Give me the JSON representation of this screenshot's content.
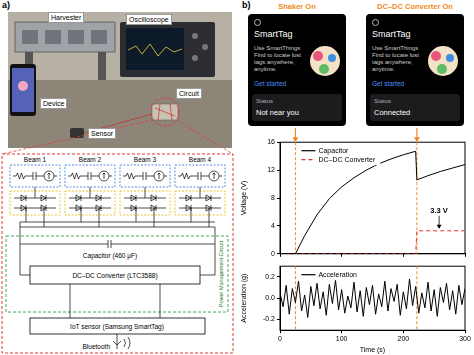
{
  "panel_labels": [
    "a)",
    "b)"
  ],
  "panel_a": {
    "photo_labels": [
      "Oscilloscope",
      "Harvester",
      "Circuit",
      "Sensor",
      "Device"
    ],
    "circuit": {
      "beams": [
        "Beam 1",
        "Beam 2",
        "Beam 3",
        "Beam 4"
      ],
      "power_management": "Power Management Circuit",
      "capacitor": "Capacitor (460 μF)",
      "converter": "DC–DC Converter (LTC3588)",
      "sensor": "IoT sensor (Samsung SmartTag)",
      "wireless": "Bluetooth"
    }
  },
  "panel_b": {
    "events": [
      {
        "label": "Shaker On",
        "x": 25
      },
      {
        "label": "DC–DC Converter On",
        "x": 222
      }
    ],
    "screenshots": [
      {
        "app": "SmartTag",
        "text": "Use SmartThings Find to locate lost tags anywhere, anytime.",
        "button": "Get started",
        "status_label": "Status",
        "status": "Not near you"
      },
      {
        "app": "SmartTag",
        "text": "Use SmartThings Find to locate lost tags anywhere, anytime.",
        "button": "Get started",
        "status_label": "Status",
        "status": "Connected"
      }
    ]
  },
  "chart_data": [
    {
      "type": "line",
      "y_label": "Voltage (V)",
      "xlim": [
        0,
        300
      ],
      "xticks": [
        0,
        100,
        200,
        300
      ],
      "ylim": [
        0,
        16
      ],
      "yticks": [
        0,
        4,
        8,
        12,
        16
      ],
      "grid": false,
      "tick_labels": "y",
      "legend": "upper left",
      "x": [
        0,
        10,
        20,
        25,
        40,
        60,
        80,
        100,
        120,
        140,
        160,
        180,
        200,
        220,
        222,
        240,
        260,
        280,
        300
      ],
      "series": [
        {
          "name": "Capacitor",
          "color": "#000000",
          "line_style": "solid",
          "values": [
            0,
            0,
            0,
            0,
            2.6,
            5.6,
            7.9,
            9.6,
            10.9,
            12.0,
            12.9,
            13.6,
            14.2,
            14.7,
            10.6,
            11.2,
            11.8,
            12.3,
            12.8
          ]
        },
        {
          "name": "DC–DC Converter",
          "color": "#e8322b",
          "line_style": "dashed",
          "values": [
            0,
            0,
            0,
            0,
            0,
            0,
            0,
            0,
            0,
            0,
            0,
            0,
            0,
            0,
            3.3,
            3.3,
            3.3,
            3.3,
            3.3
          ]
        }
      ],
      "annotations": [
        {
          "text": "3.3 V",
          "value": 3.3
        }
      ]
    },
    {
      "type": "line",
      "x_label": "Time (s)",
      "y_label": "Acceleration (g)",
      "xlim": [
        0,
        300
      ],
      "xticks": [
        0,
        100,
        200,
        300
      ],
      "ylim": [
        -0.3,
        0.3
      ],
      "yticks": [
        -0.2,
        {
          "value": 0,
          "label": "0.0"
        },
        0.2
      ],
      "grid": false,
      "legend": "upper left",
      "x": [
        0,
        5,
        10,
        15,
        20,
        25,
        30,
        35,
        40,
        45,
        50,
        55,
        60,
        65,
        70,
        75,
        80,
        85,
        90,
        95,
        100,
        105,
        110,
        115,
        120,
        125,
        130,
        135,
        140,
        145,
        150,
        155,
        160,
        165,
        170,
        175,
        180,
        185,
        190,
        195,
        200,
        205,
        210,
        215,
        220,
        225,
        230,
        235,
        240,
        245,
        250,
        255,
        260,
        265,
        270,
        275,
        280,
        285,
        290,
        295,
        300
      ],
      "series": [
        {
          "name": "Acceleration",
          "color": "#000000",
          "line_style": "solid",
          "values": [
            0.05,
            -0.08,
            0.12,
            -0.15,
            0.09,
            -0.04,
            0.16,
            -0.12,
            0.03,
            -0.18,
            0.11,
            -0.07,
            0.14,
            -0.1,
            0.06,
            -0.16,
            0.13,
            -0.05,
            0.17,
            -0.11,
            0.08,
            -0.14,
            0.02,
            -0.09,
            0.15,
            -0.13,
            0.07,
            -0.17,
            0.1,
            -0.06,
            0.12,
            -0.15,
            0.04,
            -0.08,
            0.16,
            -0.12,
            0.09,
            -0.03,
            0.13,
            -0.16,
            0.06,
            -0.1,
            0.18,
            -0.07,
            0.11,
            -0.14,
            0.05,
            -0.09,
            0.15,
            -0.12,
            0.08,
            -0.17,
            0.1,
            -0.04,
            0.14,
            -0.11,
            0.07,
            -0.15,
            0.12,
            -0.06,
            0.09
          ]
        }
      ]
    }
  ]
}
